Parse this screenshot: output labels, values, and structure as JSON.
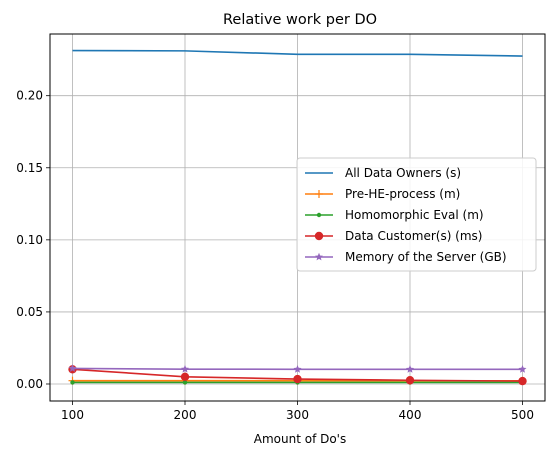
{
  "chart_data": {
    "type": "line",
    "title": "Relative work per DO",
    "xlabel": "Amount of Do's",
    "ylabel": "",
    "x": [
      100,
      200,
      300,
      400,
      500
    ],
    "xticks": [
      "100",
      "200",
      "300",
      "400",
      "500"
    ],
    "xlim": [
      80,
      520
    ],
    "ylim": [
      -0.0118,
      0.2428
    ],
    "yticks": [
      "0.00",
      "0.05",
      "0.10",
      "0.15",
      "0.20"
    ],
    "ytick_values": [
      0,
      0.05,
      0.1,
      0.15,
      0.2
    ],
    "grid": true,
    "legend_placement": "center-right",
    "series": [
      {
        "name": "All Data Owners (s)",
        "color": "#1f77b4",
        "marker": "none",
        "values": [
          0.2313,
          0.2311,
          0.2287,
          0.2287,
          0.2275
        ]
      },
      {
        "name": "Pre-HE-process (m)",
        "color": "#ff7f0e",
        "marker": "plus",
        "values": [
          0.0023,
          0.0023,
          0.0023,
          0.0022,
          0.0022
        ]
      },
      {
        "name": "Homomorphic Eval (m)",
        "color": "#2ca02c",
        "marker": "point",
        "values": [
          0.0011,
          0.0011,
          0.0011,
          0.0011,
          0.0011
        ]
      },
      {
        "name": "Data Customer(s) (ms)",
        "color": "#d62728",
        "marker": "circle",
        "values": [
          0.0102,
          0.005,
          0.0034,
          0.0026,
          0.002
        ]
      },
      {
        "name": "Memory of the Server (GB)",
        "color": "#9467bd",
        "marker": "star",
        "values": [
          0.0108,
          0.0103,
          0.0102,
          0.0102,
          0.0102
        ]
      }
    ]
  }
}
